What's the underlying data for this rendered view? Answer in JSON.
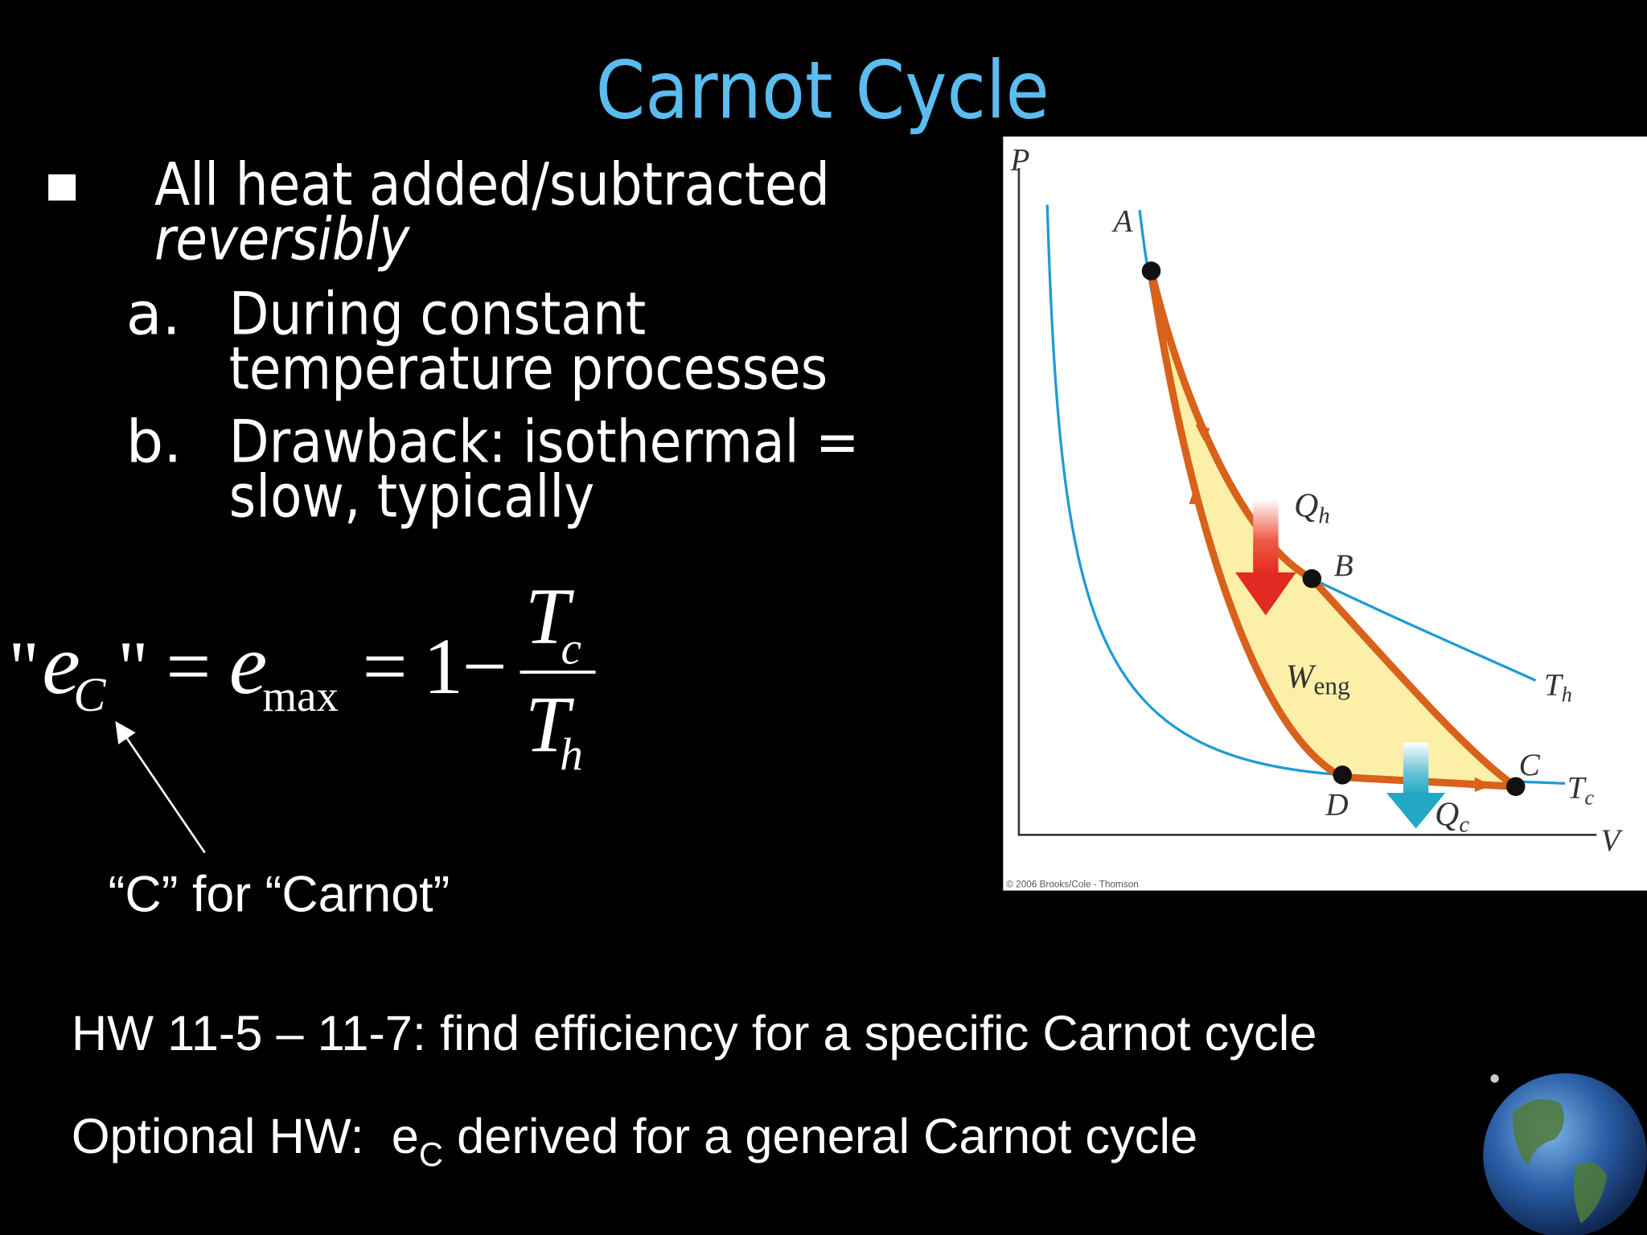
{
  "title": "Carnot Cycle",
  "bullets": [
    {
      "lines": [
        "All heat added/subtracted"
      ],
      "emphasis": "reversibly",
      "subitems": [
        {
          "label": "a.",
          "lines": [
            "During constant",
            "temperature processes"
          ]
        },
        {
          "label": "b.",
          "lines": [
            "Drawback: isothermal =",
            "slow, typically"
          ]
        }
      ]
    }
  ],
  "formula": {
    "tokens": [
      "\"",
      "e",
      "C",
      "\"",
      "=",
      "e",
      "max",
      "=",
      "1",
      "−",
      "T",
      "c",
      "T",
      "h"
    ]
  },
  "caption": "“C” for “Carnot”",
  "diagram": {
    "y_axis": "P",
    "x_axis": "V",
    "points": [
      "A",
      "B",
      "C",
      "D"
    ],
    "heat_in": {
      "symbol": "Q",
      "subscript": "h"
    },
    "work": {
      "symbol": "W",
      "subscript": "eng"
    },
    "heat_out": {
      "symbol": "Q",
      "subscript": "c"
    },
    "isotherm_hot": {
      "symbol": "T",
      "subscript": "h"
    },
    "isotherm_cold": {
      "symbol": "T",
      "subscript": "c"
    },
    "credit": "© 2006 Brooks/Cole - Thomson"
  },
  "homework": {
    "line1": "HW 11-5 – 11-7: find efficiency for a specific Carnot cycle",
    "line2": [
      "Optional HW:  e",
      "C",
      " derived for a general Carnot cycle"
    ]
  }
}
